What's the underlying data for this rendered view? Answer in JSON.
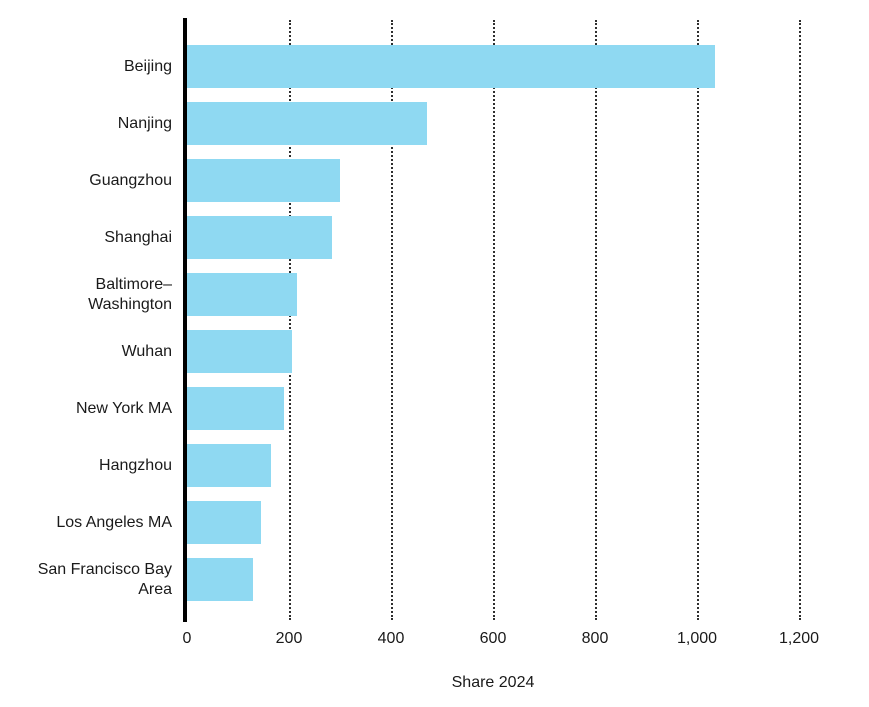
{
  "chart_data": {
    "type": "bar",
    "orientation": "horizontal",
    "title": "",
    "xlabel": "Share 2024",
    "ylabel": "",
    "categories": [
      "Beijing",
      "Nanjing",
      "Guangzhou",
      "Shanghai",
      "Baltimore–Washington",
      "Wuhan",
      "New York MA",
      "Hangzhou",
      "Los Angeles MA",
      "San Francisco Bay Area"
    ],
    "values": [
      1035,
      470,
      300,
      285,
      215,
      205,
      190,
      165,
      145,
      130
    ],
    "xlim": [
      0,
      1300
    ],
    "xticks": [
      0,
      200,
      400,
      600,
      800,
      1000,
      1200
    ],
    "xtick_labels": [
      "0",
      "200",
      "400",
      "600",
      "800",
      "1,000",
      "1,200"
    ],
    "grid": "vertical-dotted",
    "legend": "none",
    "bar_color": "#8FD9F2",
    "axis_color": "#000000",
    "grid_color": "#2e2e2e",
    "text_color": "#1a1a1a"
  }
}
